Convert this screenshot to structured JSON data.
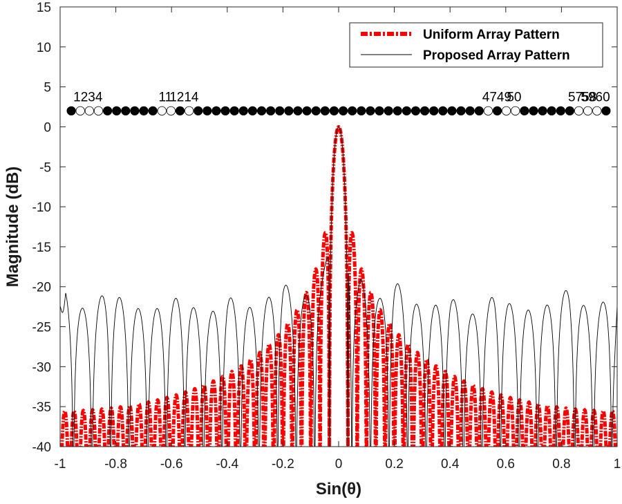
{
  "chart_data": {
    "type": "line",
    "xlabel": "Sin(θ)",
    "ylabel": "Magnitude (dB)",
    "xlim": [
      -1,
      1
    ],
    "ylim": [
      -40,
      15
    ],
    "x_ticks": [
      -1,
      -0.8,
      -0.6,
      -0.4,
      -0.2,
      0,
      0.2,
      0.4,
      0.6,
      0.8,
      1
    ],
    "x_tick_labels": [
      "-1",
      "-0.8",
      "-0.6",
      "-0.4",
      "-0.2",
      "0",
      "0.2",
      "0.4",
      "0.6",
      "0.8",
      "1"
    ],
    "y_ticks": [
      15,
      10,
      5,
      0,
      -5,
      -10,
      -15,
      -20,
      -25,
      -30,
      -35,
      -40
    ],
    "y_tick_labels": [
      "15",
      "10",
      "5",
      "0",
      "-5",
      "-10",
      "-15",
      "-20",
      "-25",
      "-30",
      "-35",
      "-40"
    ],
    "grid": false,
    "legend_position": "top-right",
    "series": [
      {
        "name": "Uniform Array Pattern",
        "color": "#ff0000",
        "style": "dash-dot",
        "num_elements": 60,
        "floor_db": -40
      },
      {
        "name": "Proposed Array Pattern",
        "color": "#000000",
        "style": "solid",
        "approx_sidelobe_peaks_db": [
          {
            "x": -0.98,
            "y": -20.5
          },
          {
            "x": -0.83,
            "y": -20
          },
          {
            "x": -0.56,
            "y": -20.8
          },
          {
            "x": -0.4,
            "y": -21
          },
          {
            "x": -0.2,
            "y": -19
          },
          {
            "x": 0.2,
            "y": -19
          },
          {
            "x": 0.4,
            "y": -21
          },
          {
            "x": 0.56,
            "y": -20.8
          },
          {
            "x": 0.83,
            "y": -20
          },
          {
            "x": 0.98,
            "y": -20.5
          }
        ]
      }
    ],
    "array_elements": {
      "y_db": 2,
      "count": 60,
      "x_start": -0.96,
      "x_end": 0.96,
      "off_indices": [
        2,
        3,
        4,
        11,
        12,
        14,
        47,
        49,
        50,
        57,
        58,
        59
      ],
      "labels": [
        {
          "text": "1234",
          "x": -0.9
        },
        {
          "text": "11",
          "x": -0.622
        },
        {
          "text": "1214",
          "x": -0.555
        },
        {
          "text": "4749",
          "x": 0.568
        },
        {
          "text": "50",
          "x": 0.63
        },
        {
          "text": "57",
          "x": 0.85
        },
        {
          "text": "58",
          "x": 0.9
        },
        {
          "text": "5960",
          "x": 0.922
        }
      ]
    }
  }
}
